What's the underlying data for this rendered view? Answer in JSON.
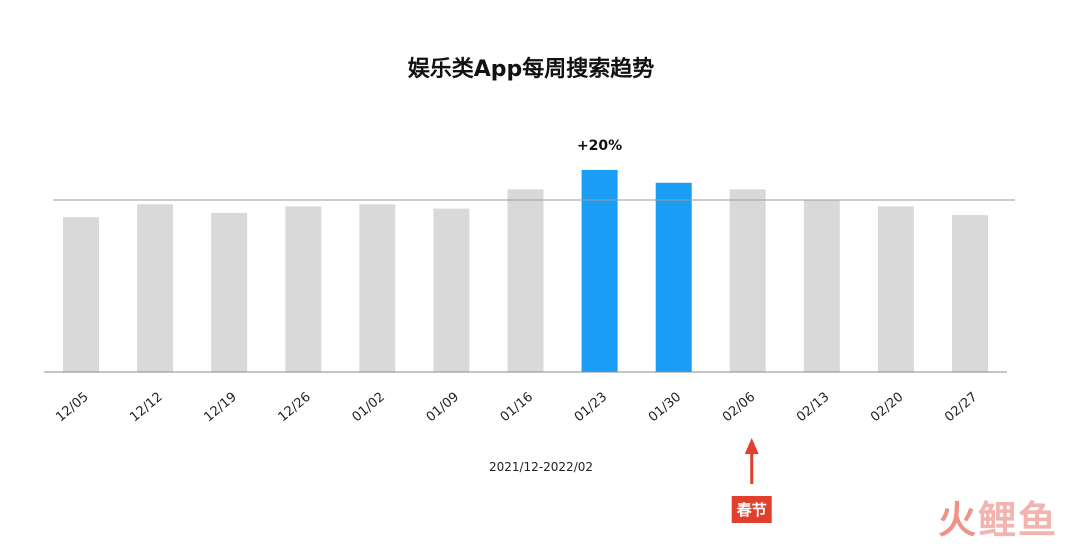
{
  "chart_data": {
    "type": "bar",
    "title": "娱乐类App每周搜索趋势",
    "xlabel": "2021/12-2022/02",
    "ylabel": "",
    "categories": [
      "12/05",
      "12/12",
      "12/19",
      "12/26",
      "01/02",
      "01/09",
      "01/16",
      "01/23",
      "01/30",
      "02/06",
      "02/13",
      "02/20",
      "02/27"
    ],
    "values": [
      72,
      78,
      74,
      77,
      78,
      76,
      85,
      94,
      88,
      85,
      80,
      77,
      73
    ],
    "highlighted": [
      "01/23",
      "01/30"
    ],
    "reference_line": 80,
    "ylim": [
      0,
      100
    ],
    "grid": false,
    "annotations": [
      {
        "category": "01/23",
        "text": "+20%"
      },
      {
        "category": "02/06",
        "text": "春节"
      }
    ],
    "colors": {
      "bar": "#d9d9d9",
      "highlight": "#1a9ef5",
      "arrow": "#e0402c",
      "axis": "#b0b0b0"
    }
  },
  "watermark": [
    "火",
    "鲤",
    "鱼"
  ]
}
